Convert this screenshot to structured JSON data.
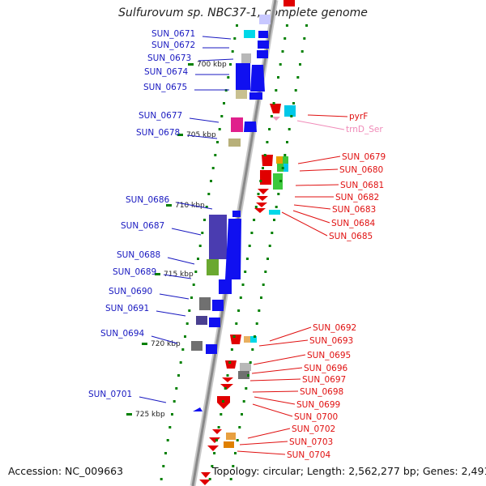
{
  "title": "Sulfurovum sp. NBC37-1, complete genome",
  "accession": "Accession: NC_009663",
  "stats": "Topology: circular; Length: 2,562,277 bp; Genes: 2,491",
  "colors": {
    "left_label": "#1818c0",
    "right_label": "#e01010",
    "trna_label": "#f08ab8",
    "backbone": "#909090",
    "tick": "#008000"
  },
  "scale_labels": [
    "700 kbp",
    "705 kbp",
    "710 kbp",
    "715 kbp",
    "720 kbp",
    "725 kbp"
  ],
  "left_genes": [
    "SUN_0671",
    "SUN_0672",
    "SUN_0673",
    "SUN_0674",
    "SUN_0675",
    "SUN_0677",
    "SUN_0678",
    "SUN_0686",
    "SUN_0687",
    "SUN_0688",
    "SUN_0689",
    "SUN_0690",
    "SUN_0691",
    "SUN_0694",
    "SUN_0701"
  ],
  "right_genes": [
    "SUN_0679",
    "SUN_0680",
    "SUN_0681",
    "SUN_0682",
    "SUN_0683",
    "SUN_0684",
    "SUN_0685",
    "SUN_0692",
    "SUN_0693",
    "SUN_0695",
    "SUN_0696",
    "SUN_0697",
    "SUN_0698",
    "SUN_0699",
    "SUN_0700",
    "SUN_0702",
    "SUN_0703",
    "SUN_0704"
  ],
  "right_special": {
    "pyrF": "pyrF",
    "trna": "trnD_Ser"
  }
}
